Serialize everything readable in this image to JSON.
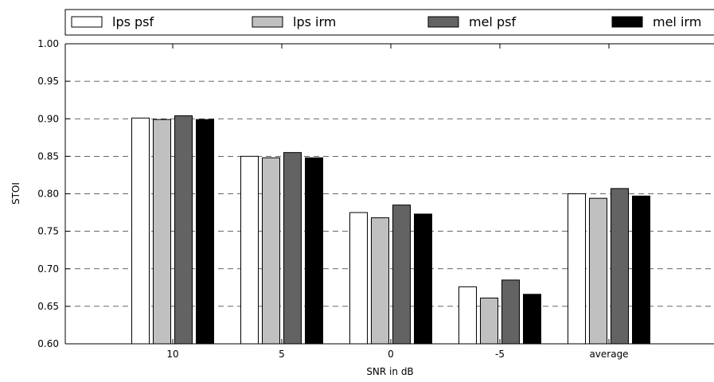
{
  "chart_data": {
    "type": "bar",
    "title": "",
    "xlabel": "SNR in dB",
    "ylabel": "STOI",
    "categories": [
      "10",
      "5",
      "0",
      "-5",
      "average"
    ],
    "series": [
      {
        "name": "lps psf",
        "color": "#ffffff",
        "values": [
          0.901,
          0.85,
          0.775,
          0.676,
          0.8
        ]
      },
      {
        "name": "lps irm",
        "color": "#c0c0c0",
        "values": [
          0.899,
          0.848,
          0.768,
          0.661,
          0.794
        ]
      },
      {
        "name": "mel psf",
        "color": "#636363",
        "values": [
          0.904,
          0.855,
          0.785,
          0.685,
          0.807
        ]
      },
      {
        "name": "mel irm",
        "color": "#000000",
        "values": [
          0.899,
          0.848,
          0.773,
          0.666,
          0.797
        ]
      }
    ],
    "ylim": [
      0.6,
      1.0
    ],
    "yticks": [
      "0.60",
      "0.65",
      "0.70",
      "0.75",
      "0.80",
      "0.85",
      "0.90",
      "0.95",
      "1.00"
    ],
    "grid": "horizontal dashed",
    "legend_position": "top, outside plot"
  }
}
